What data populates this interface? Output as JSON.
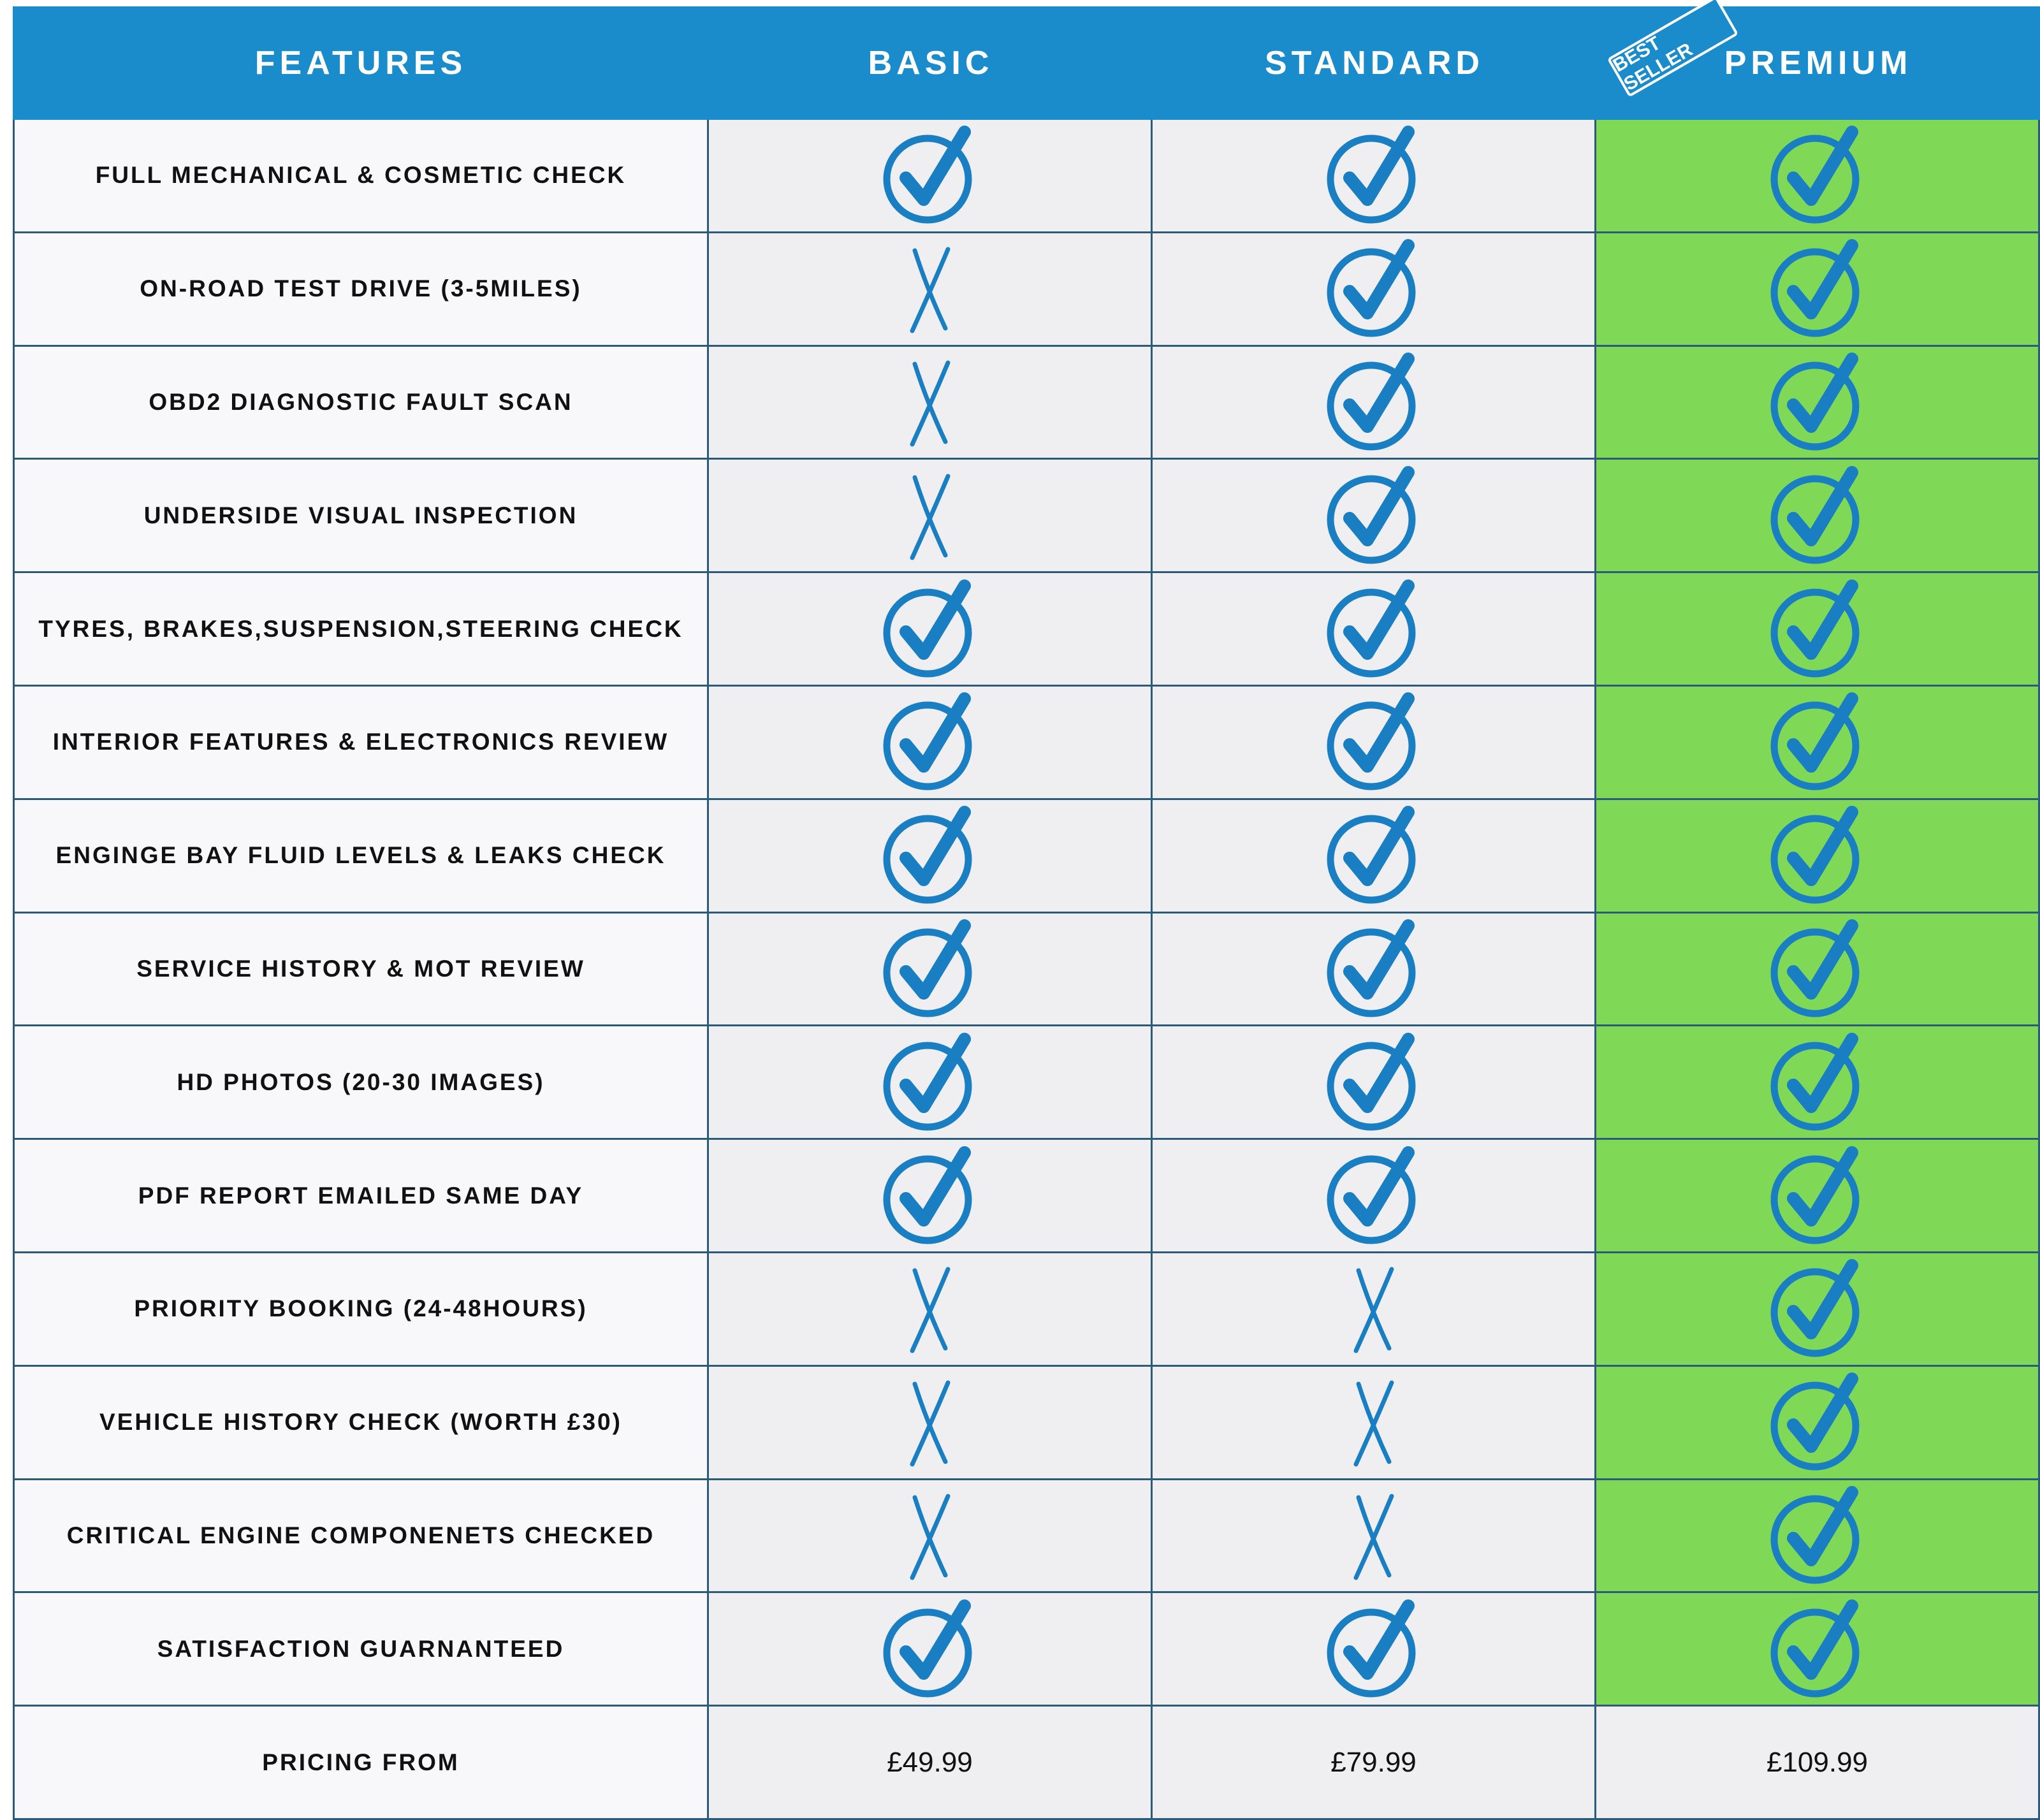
{
  "header": {
    "columns": [
      "FEATURES",
      "BASIC",
      "STANDARD",
      "PREMIUM"
    ],
    "badge": "BEST SELLER"
  },
  "rows": [
    {
      "feature": "FULL MECHANICAL & COSMETIC CHECK",
      "included": [
        true,
        true,
        true
      ]
    },
    {
      "feature": "ON-ROAD TEST DRIVE (3-5MILES)",
      "included": [
        false,
        true,
        true
      ]
    },
    {
      "feature": "OBD2 DIAGNOSTIC FAULT SCAN",
      "included": [
        false,
        true,
        true
      ]
    },
    {
      "feature": "UNDERSIDE VISUAL INSPECTION",
      "included": [
        false,
        true,
        true
      ]
    },
    {
      "feature": "TYRES, BRAKES,SUSPENSION,STEERING CHECK",
      "included": [
        true,
        true,
        true
      ]
    },
    {
      "feature": "INTERIOR FEATURES & ELECTRONICS REVIEW",
      "included": [
        true,
        true,
        true
      ]
    },
    {
      "feature": "ENGINGE BAY FLUID LEVELS & LEAKS CHECK",
      "included": [
        true,
        true,
        true
      ]
    },
    {
      "feature": "SERVICE HISTORY & MOT REVIEW",
      "included": [
        true,
        true,
        true
      ]
    },
    {
      "feature": "HD PHOTOS (20-30 IMAGES)",
      "included": [
        true,
        true,
        true
      ]
    },
    {
      "feature": "PDF REPORT EMAILED SAME DAY",
      "included": [
        true,
        true,
        true
      ]
    },
    {
      "feature": "PRIORITY BOOKING (24-48HOURS)",
      "included": [
        false,
        false,
        true
      ]
    },
    {
      "feature": "VEHICLE HISTORY CHECK (WORTH £30)",
      "included": [
        false,
        false,
        true
      ]
    },
    {
      "feature": "CRITICAL ENGINE COMPONENETS CHECKED",
      "included": [
        false,
        false,
        true
      ]
    },
    {
      "feature": "SATISFACTION GUARNANTEED",
      "included": [
        true,
        true,
        true
      ]
    }
  ],
  "pricing": {
    "label": "PRICING FROM",
    "prices": [
      "£49.99",
      "£79.99",
      "£109.99"
    ]
  }
}
